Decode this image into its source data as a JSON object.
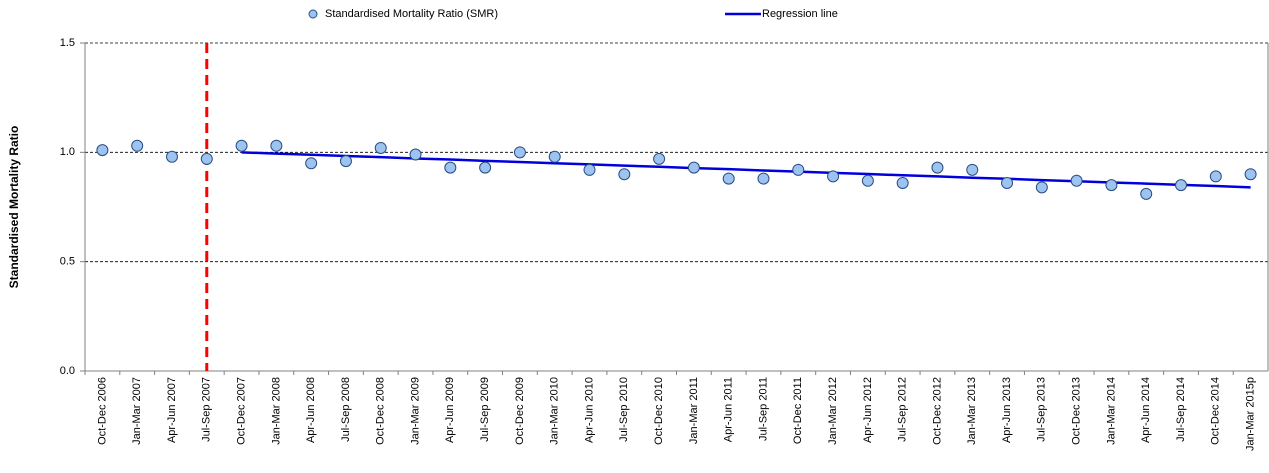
{
  "chart_data": {
    "type": "line",
    "y_label": "Standardised Mortality Ratio",
    "categories": [
      "Oct-Dec 2006",
      "Jan-Mar 2007",
      "Apr-Jun 2007",
      "Jul-Sep 2007",
      "Oct-Dec 2007",
      "Jan-Mar 2008",
      "Apr-Jun 2008",
      "Jul-Sep 2008",
      "Oct-Dec 2008",
      "Jan-Mar 2009",
      "Apr-Jun 2009",
      "Jul-Sep 2009",
      "Oct-Dec 2009",
      "Jan-Mar 2010",
      "Apr-Jun 2010",
      "Jul-Sep 2010",
      "Oct-Dec 2010",
      "Jan-Mar 2011",
      "Apr-Jun 2011",
      "Jul-Sep 2011",
      "Oct-Dec 2011",
      "Jan-Mar 2012",
      "Apr-Jun 2012",
      "Jul-Sep 2012",
      "Oct-Dec 2012",
      "Jan-Mar 2013",
      "Apr-Jun 2013",
      "Jul-Sep 2013",
      "Oct-Dec 2013",
      "Jan-Mar 2014",
      "Apr-Jun 2014",
      "Jul-Sep 2014",
      "Oct-Dec 2014",
      "Jan-Mar 2015p"
    ],
    "series": [
      {
        "name": "Standardised Mortality Ratio (SMR)",
        "style": "markers",
        "color": "#9dc3f0",
        "edge_color": "#2a4d80",
        "values": [
          1.01,
          1.03,
          0.98,
          0.97,
          1.03,
          1.03,
          0.95,
          0.96,
          1.02,
          0.99,
          0.93,
          0.93,
          1.0,
          0.98,
          0.92,
          0.9,
          0.97,
          0.93,
          0.88,
          0.88,
          0.92,
          0.89,
          0.87,
          0.86,
          0.93,
          0.92,
          0.86,
          0.84,
          0.87,
          0.85,
          0.81,
          0.85,
          0.89,
          0.9
        ]
      },
      {
        "name": "Regression line",
        "style": "line",
        "color": "#0000dd",
        "values": [
          null,
          null,
          null,
          null,
          1.0,
          0.994,
          0.989,
          0.983,
          0.978,
          0.972,
          0.967,
          0.961,
          0.956,
          0.95,
          0.945,
          0.939,
          0.934,
          0.928,
          0.923,
          0.917,
          0.912,
          0.906,
          0.901,
          0.895,
          0.89,
          0.884,
          0.879,
          0.873,
          0.868,
          0.862,
          0.857,
          0.851,
          0.846,
          0.84
        ]
      }
    ],
    "ylim": [
      0,
      1.5
    ],
    "yticks": [
      {
        "value": 0,
        "label": "0.0"
      },
      0.5,
      {
        "value": 1,
        "label": "1.0"
      },
      1.5
    ],
    "grid": true,
    "vline": {
      "category": "Jul-Sep 2007",
      "color": "#ff0000"
    }
  }
}
